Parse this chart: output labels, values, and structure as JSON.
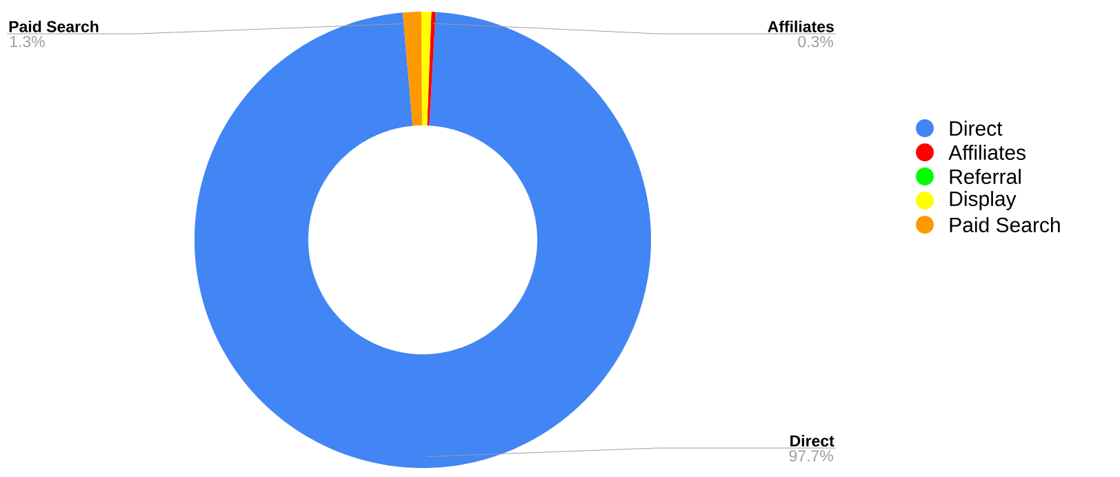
{
  "chart_data": {
    "type": "donut",
    "categories": [
      "Direct",
      "Affiliates",
      "Referral",
      "Display",
      "Paid Search"
    ],
    "values": [
      97.7,
      0.3,
      0,
      0.7,
      1.3
    ],
    "colors": [
      "#4285f4",
      "#ff0000",
      "#00ff00",
      "#ffff00",
      "#ff9900"
    ],
    "value_labels": [
      "97.7%",
      "0.3%",
      null,
      null,
      "1.3%"
    ],
    "legend": "right"
  }
}
